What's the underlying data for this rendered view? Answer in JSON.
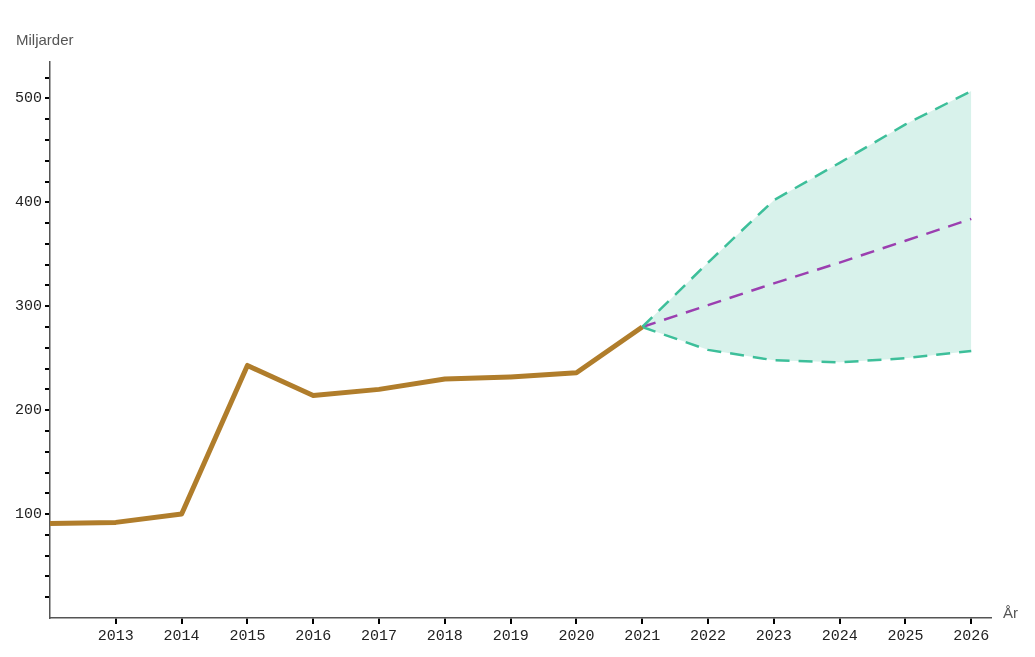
{
  "chart_data": {
    "type": "line",
    "xlabel": "År",
    "ylabel": "Miljarder",
    "x": [
      2012,
      2013,
      2014,
      2015,
      2016,
      2017,
      2018,
      2019,
      2020,
      2021
    ],
    "xlim": [
      2012,
      2026.3
    ],
    "xticks": [
      2013,
      2014,
      2015,
      2016,
      2017,
      2018,
      2019,
      2020,
      2021,
      2022,
      2023,
      2024,
      2025,
      2026
    ],
    "ylim": [
      0,
      535
    ],
    "yticks": [
      {
        "value": 20,
        "label": null
      },
      {
        "value": 40,
        "label": null
      },
      {
        "value": 60,
        "label": null
      },
      {
        "value": 80,
        "label": null
      },
      100,
      {
        "value": 120,
        "label": null
      },
      {
        "value": 140,
        "label": null
      },
      {
        "value": 160,
        "label": null
      },
      {
        "value": 180,
        "label": null
      },
      200,
      {
        "value": 220,
        "label": null
      },
      {
        "value": 240,
        "label": null
      },
      {
        "value": 260,
        "label": null
      },
      {
        "value": 280,
        "label": null
      },
      300,
      {
        "value": 320,
        "label": null
      },
      {
        "value": 340,
        "label": null
      },
      {
        "value": 360,
        "label": null
      },
      {
        "value": 380,
        "label": null
      },
      400,
      {
        "value": 420,
        "label": null
      },
      {
        "value": 440,
        "label": null
      },
      {
        "value": 460,
        "label": null
      },
      {
        "value": 480,
        "label": null
      },
      500,
      {
        "value": 520,
        "label": null
      }
    ],
    "marker": "none",
    "series": [
      {
        "color": "#b07d2b",
        "values": [
          91,
          92,
          100,
          243,
          214,
          220,
          230,
          232,
          236,
          280
        ]
      },
      {
        "color": "#3dbf9a",
        "line_style": "dashed",
        "x": [
          2021,
          2022,
          2023,
          2024,
          2025,
          2026
        ],
        "values": [
          280,
          258,
          248,
          246,
          250,
          257
        ]
      },
      {
        "color": "#3dbf9a",
        "line_style": "dashed",
        "x": [
          2021,
          2022,
          2023,
          2024,
          2025,
          2026
        ],
        "values": [
          280,
          342,
          402,
          438,
          475,
          507
        ]
      },
      {
        "color": "#9b3fb0",
        "line_style": "dashed",
        "x": [
          2021,
          2022,
          2023,
          2024,
          2025,
          2026
        ],
        "values": [
          280,
          301,
          322,
          342,
          363,
          384
        ],
        "lower": [
          280,
          258,
          248,
          246,
          250,
          257
        ],
        "upper": [
          280,
          342,
          402,
          438,
          475,
          507
        ]
      }
    ]
  }
}
